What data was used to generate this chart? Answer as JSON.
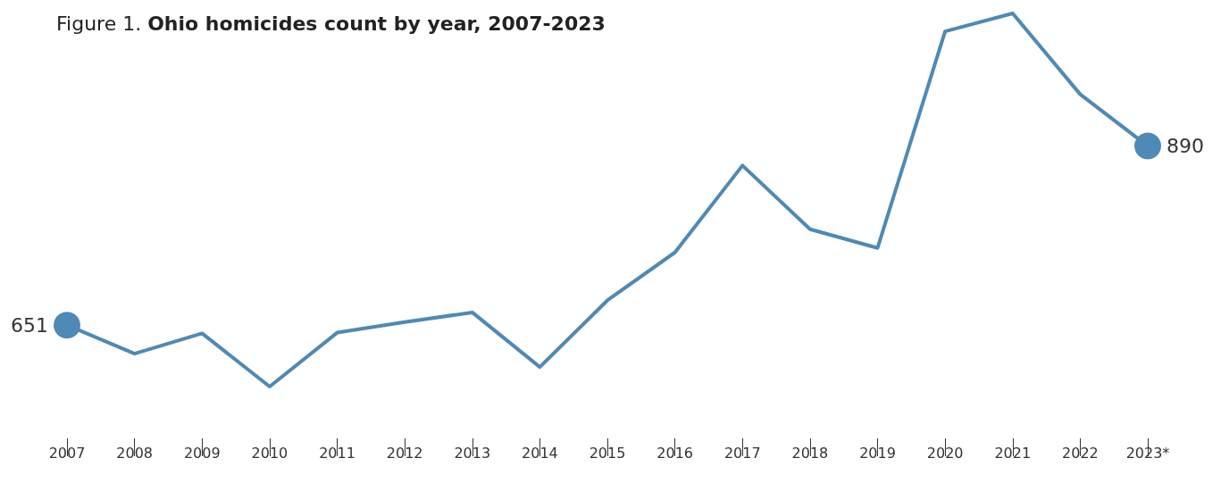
{
  "chart_data": {
    "type": "line",
    "title": "Figure 1. Ohio homicides count by year, 2007-2023",
    "categories": [
      "2007",
      "2008",
      "2009",
      "2010",
      "2011",
      "2012",
      "2013",
      "2014",
      "2015",
      "2016",
      "2017",
      "2018",
      "2019",
      "2020",
      "2021",
      "2022",
      "2023*"
    ],
    "series": [
      {
        "color": "#4f89b5",
        "values": [
          651,
          613,
          640,
          569,
          641,
          655,
          668,
          595,
          684,
          748,
          864,
          779,
          754,
          1043,
          1067,
          959,
          890
        ],
        "value_labels": [
          "651",
          null,
          null,
          null,
          null,
          null,
          null,
          null,
          null,
          null,
          null,
          null,
          null,
          null,
          null,
          null,
          "890"
        ]
      }
    ],
    "line_style": "solid"
  }
}
